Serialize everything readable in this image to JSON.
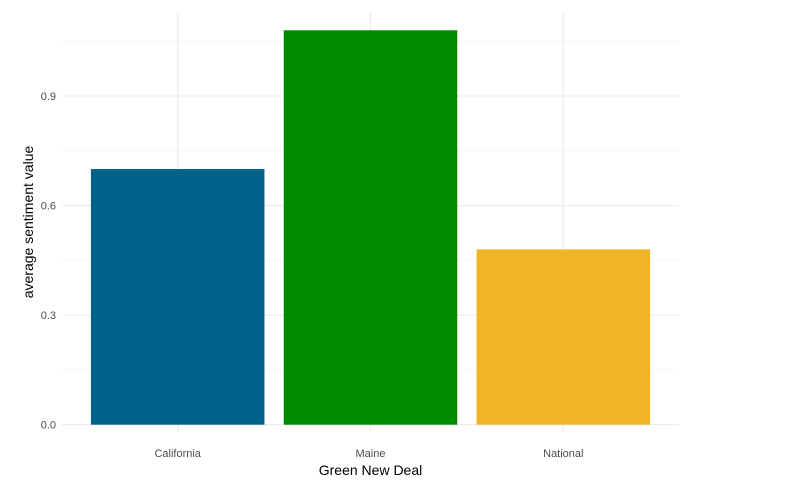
{
  "chart_data": {
    "type": "bar",
    "title": "",
    "xlabel": "Green New Deal",
    "ylabel": "average sentiment value",
    "categories": [
      "California",
      "Maine",
      "National"
    ],
    "values": [
      0.7,
      1.08,
      0.48
    ],
    "colors": [
      "#006288",
      "#008a00",
      "#efb526"
    ],
    "ylim": [
      -0.02,
      1.13
    ],
    "yticks": [
      0.0,
      0.3,
      0.6,
      0.9
    ],
    "ytick_labels": [
      "0.0",
      "0.3",
      "0.6",
      "0.9"
    ],
    "grid": true,
    "legend": "none"
  }
}
